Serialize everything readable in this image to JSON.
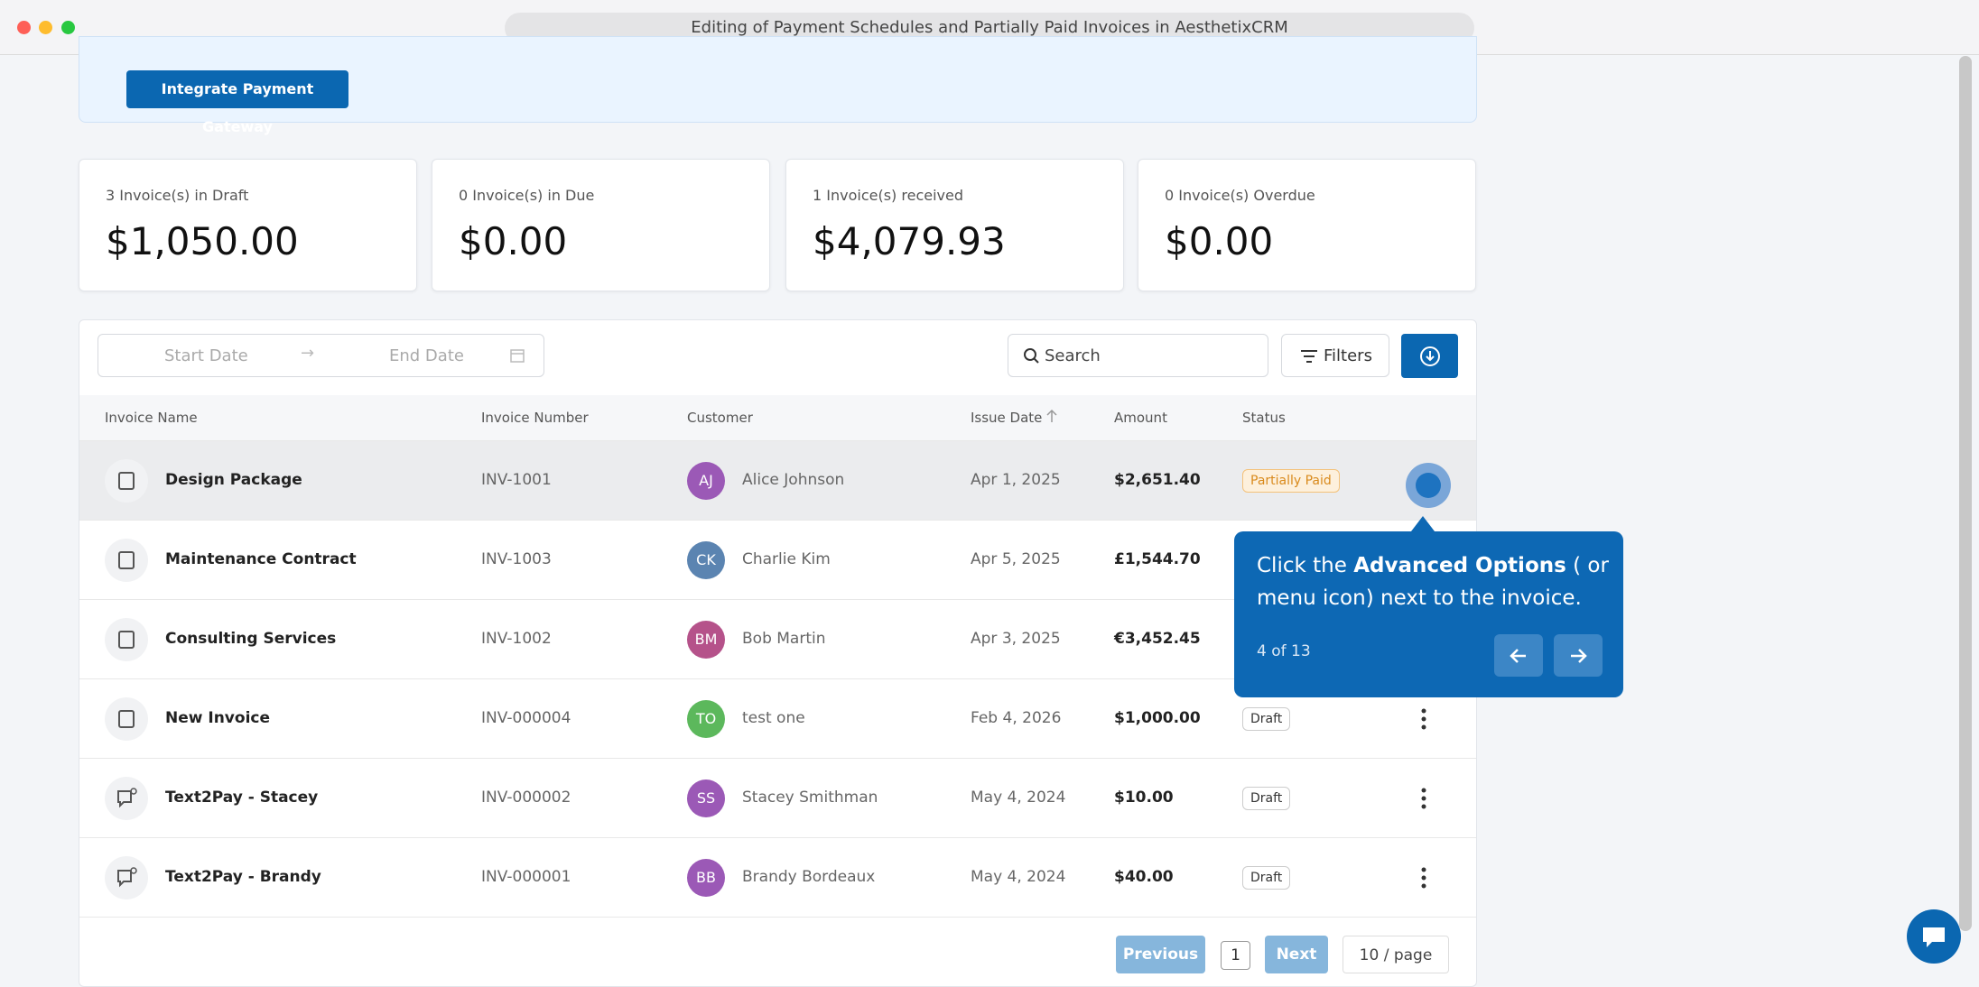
{
  "window": {
    "title": "Editing of Payment Schedules and Partially Paid Invoices in AesthetixCRM"
  },
  "banner": {
    "button": "Integrate Payment Gateway"
  },
  "cards": [
    {
      "label": "3 Invoice(s) in Draft",
      "amount": "$1,050.00"
    },
    {
      "label": "0 Invoice(s) in Due",
      "amount": "$0.00"
    },
    {
      "label": "1 Invoice(s) received",
      "amount": "$4,079.93"
    },
    {
      "label": "0 Invoice(s) Overdue",
      "amount": "$0.00"
    }
  ],
  "toolbar": {
    "start_date": "Start Date",
    "end_date": "End Date",
    "search": "Search",
    "filters": "Filters"
  },
  "table": {
    "headers": [
      "Invoice Name",
      "Invoice Number",
      "Customer",
      "Issue Date",
      "Amount",
      "Status"
    ],
    "rows": [
      {
        "name": "Design Package",
        "number": "INV-1001",
        "initials": "AJ",
        "customer": "Alice Johnson",
        "date": "Apr 1, 2025",
        "amount": "$2,651.40",
        "status": "Partially Paid"
      },
      {
        "name": "Maintenance Contract",
        "number": "INV-1003",
        "initials": "CK",
        "customer": "Charlie Kim",
        "date": "Apr 5, 2025",
        "amount": "£1,544.70",
        "status": null
      },
      {
        "name": "Consulting Services",
        "number": "INV-1002",
        "initials": "BM",
        "customer": "Bob Martin",
        "date": "Apr 3, 2025",
        "amount": "€3,452.45",
        "status": null
      },
      {
        "name": "New Invoice",
        "number": "INV-000004",
        "initials": "TO",
        "customer": "test one",
        "date": "Feb 4, 2026",
        "amount": "$1,000.00",
        "status": "Draft"
      },
      {
        "name": "Text2Pay - Stacey",
        "number": "INV-000002",
        "initials": "SS",
        "customer": "Stacey Smithman",
        "date": "May 4, 2024",
        "amount": "$10.00",
        "status": "Draft"
      },
      {
        "name": "Text2Pay - Brandy",
        "number": "INV-000001",
        "initials": "BB",
        "customer": "Brandy Bordeaux",
        "date": "May 4, 2024",
        "amount": "$40.00",
        "status": "Draft"
      }
    ]
  },
  "pagination": {
    "previous": "Previous",
    "page": "1",
    "next": "Next",
    "page_size": "10 / page"
  },
  "tooltip": {
    "text_before": "Click the ",
    "text_bold": "Advanced Options",
    "text_after": " (   or menu icon) next to the invoice.",
    "step": "4 of 13"
  }
}
